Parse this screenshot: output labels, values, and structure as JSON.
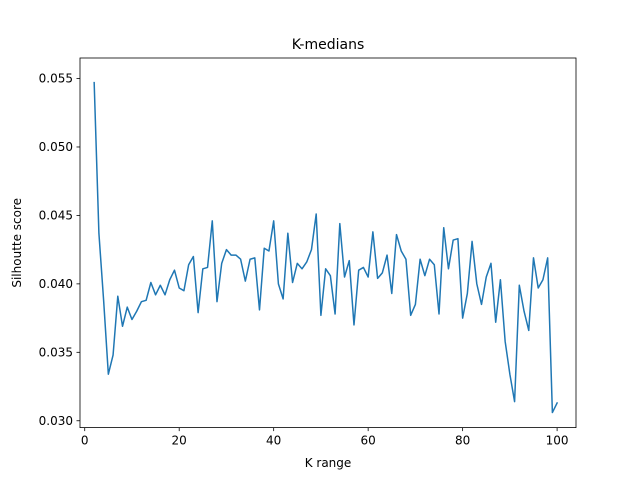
{
  "chart_data": {
    "type": "line",
    "title": "K-medians",
    "xlabel": "K range",
    "ylabel": "Silhoutte score",
    "xlim": [
      -1,
      104
    ],
    "ylim": [
      0.0295,
      0.0565
    ],
    "xticks": [
      0,
      20,
      40,
      60,
      80,
      100
    ],
    "xtick_labels": [
      "0",
      "20",
      "40",
      "60",
      "80",
      "100"
    ],
    "yticks": [
      0.03,
      0.035,
      0.04,
      0.045,
      0.05,
      0.055
    ],
    "ytick_labels": [
      "0.030",
      "0.035",
      "0.040",
      "0.045",
      "0.050",
      "0.055"
    ],
    "grid": false,
    "line_color": "#1f77b4",
    "series": [
      {
        "x": [
          2,
          3,
          4,
          5,
          6,
          7,
          8,
          9,
          10,
          11,
          12,
          13,
          14,
          15,
          16,
          17,
          18,
          19,
          20,
          21,
          22,
          23,
          24,
          25,
          26,
          27,
          28,
          29,
          30,
          31,
          32,
          33,
          34,
          35,
          36,
          37,
          38,
          39,
          40,
          41,
          42,
          43,
          44,
          45,
          46,
          47,
          48,
          49,
          50,
          51,
          52,
          53,
          54,
          55,
          56,
          57,
          58,
          59,
          60,
          61,
          62,
          63,
          64,
          65,
          66,
          67,
          68,
          69,
          70,
          71,
          72,
          73,
          74,
          75,
          76,
          77,
          78,
          79,
          80,
          81,
          82,
          83,
          84,
          85,
          86,
          87,
          88,
          89,
          90,
          91,
          92,
          93,
          94,
          95,
          96,
          97,
          98,
          99,
          100
        ],
        "values": [
          0.0547,
          0.0437,
          0.0388,
          0.0334,
          0.0348,
          0.0391,
          0.0369,
          0.0383,
          0.0374,
          0.038,
          0.0387,
          0.0388,
          0.0401,
          0.0392,
          0.0399,
          0.0392,
          0.0403,
          0.041,
          0.0397,
          0.0395,
          0.0414,
          0.042,
          0.0379,
          0.0411,
          0.0412,
          0.0446,
          0.0387,
          0.0415,
          0.0425,
          0.0421,
          0.0421,
          0.0418,
          0.0402,
          0.0418,
          0.0419,
          0.0381,
          0.0426,
          0.0424,
          0.0446,
          0.04,
          0.0389,
          0.0437,
          0.0401,
          0.0415,
          0.0411,
          0.0416,
          0.0425,
          0.0451,
          0.0377,
          0.0411,
          0.0406,
          0.0378,
          0.0444,
          0.0405,
          0.0417,
          0.037,
          0.041,
          0.0412,
          0.0405,
          0.0438,
          0.0404,
          0.0408,
          0.0421,
          0.0393,
          0.0436,
          0.0424,
          0.0418,
          0.0377,
          0.0385,
          0.0418,
          0.0406,
          0.0418,
          0.0414,
          0.0378,
          0.0441,
          0.0411,
          0.0432,
          0.0433,
          0.0375,
          0.0393,
          0.0431,
          0.04,
          0.0385,
          0.0405,
          0.0415,
          0.0372,
          0.0403,
          0.0358,
          0.0334,
          0.0314,
          0.0399,
          0.038,
          0.0366,
          0.0419,
          0.0397,
          0.0403,
          0.0419,
          0.0306,
          0.0313
        ]
      }
    ]
  }
}
